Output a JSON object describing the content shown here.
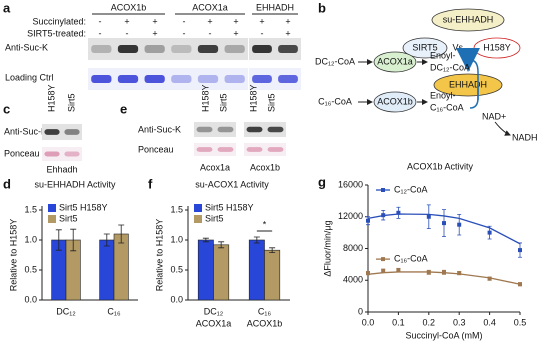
{
  "panel_labels": [
    "a",
    "b",
    "c",
    "d",
    "e",
    "f",
    "g"
  ],
  "blot_a": {
    "groups": [
      "ACOX1b",
      "ACOX1a",
      "EHHADH"
    ],
    "rows": [
      {
        "label": "Succinylated:",
        "marks": [
          "-",
          "+",
          "+",
          "-",
          "+",
          "+",
          "+",
          "+"
        ]
      },
      {
        "label": "SIRT5-treated:",
        "marks": [
          "-",
          "-",
          "+",
          "-",
          "-",
          "+",
          "-",
          "+"
        ]
      }
    ],
    "blots": [
      "Anti-Suc-K",
      "Loading Ctrl"
    ]
  },
  "diagram_b": {
    "top": "su-EHHADH",
    "left": "SIRT5",
    "vs": "Vs.",
    "right": "H158Y",
    "target": "EHHADH",
    "substrates": [
      "DC₁₂-CoA",
      "C₁₆-CoA"
    ],
    "enzymes": [
      "ACOX1a",
      "ACOX1b"
    ],
    "products": [
      [
        "Enoyl-",
        "DC₁₂-CoA"
      ],
      [
        "Enoyl-",
        "C₁₆-CoA"
      ]
    ],
    "cofactor": "NAD+",
    "cofactor_product": "NADH"
  },
  "blot_c": {
    "lanes": [
      "H158Y",
      "Sirt5"
    ],
    "blots": [
      "Anti-Suc-K",
      "Ponceau"
    ],
    "proteins": [
      "Ehhadh"
    ]
  },
  "blot_e": {
    "lanes": [
      "H158Y",
      "Sirt5",
      "H158Y",
      "Sirt5"
    ],
    "blots": [
      "Anti-Suc-K",
      "Ponceau"
    ],
    "proteins": [
      "Acox1a",
      "Acox1b"
    ]
  },
  "chart_data": [
    {
      "type": "bar",
      "title": "su-EHHADH Activity",
      "ylabel": "Relative to H158Y",
      "categories": [
        "DC₁₂",
        "C₁₆"
      ],
      "series": [
        {
          "name": "Sirt5 H158Y",
          "color": "#2847d8",
          "values": [
            1.0,
            1.0
          ],
          "errors": [
            0.17,
            0.1
          ]
        },
        {
          "name": "Sirt5",
          "color": "#b39a64",
          "values": [
            1.0,
            1.1
          ],
          "errors": [
            0.18,
            0.15
          ]
        }
      ],
      "ylim": [
        0,
        1.5
      ],
      "yticks": [
        {
          "value": 0,
          "label": "0.0"
        },
        {
          "value": 0.5,
          "label": "0.5"
        },
        {
          "value": 1,
          "label": "1.0"
        },
        {
          "value": 1.5,
          "label": "1.5"
        }
      ],
      "legend": "upper left"
    },
    {
      "type": "bar",
      "title": "su-ACOX1 Activity",
      "ylabel": "Relative to H158Y",
      "categories": [
        "DC₁₂",
        "C₁₆"
      ],
      "sublabels": [
        "ACOX1a",
        "ACOX1b"
      ],
      "series": [
        {
          "name": "Sirt5 H158Y",
          "color": "#2847d8",
          "values": [
            1.0,
            1.0
          ],
          "errors": [
            0.03,
            0.05
          ]
        },
        {
          "name": "Sirt5",
          "color": "#b39a64",
          "values": [
            0.92,
            0.83
          ],
          "errors": [
            0.05,
            0.04
          ]
        }
      ],
      "ylim": [
        0,
        1.5
      ],
      "yticks": [
        {
          "value": 0,
          "label": "0.0"
        },
        {
          "value": 0.5,
          "label": "0.5"
        },
        {
          "value": 1,
          "label": "1.0"
        },
        {
          "value": 1.5,
          "label": "1.5"
        }
      ],
      "annotation": "*",
      "legend": "upper left"
    },
    {
      "type": "scatter",
      "title": "ACOX1b Activity",
      "ylabel": "ΔFluor/min/μg",
      "xlabel": "Succinyl-CoA (mM)",
      "x": [
        0,
        0.05,
        0.1,
        0.2,
        0.25,
        0.3,
        0.4,
        0.5
      ],
      "series": [
        {
          "name": "C₁₂-CoA",
          "color": "#2a4fb8",
          "values": [
            11500,
            12200,
            12500,
            12000,
            11200,
            11000,
            10000,
            7800
          ],
          "errors": [
            500,
            600,
            700,
            1500,
            1700,
            1300,
            800,
            900
          ],
          "fit": [
            11800,
            12150,
            12350,
            12300,
            12100,
            11800,
            10600,
            8600
          ]
        },
        {
          "name": "C₁₆-CoA",
          "color": "#a07850",
          "values": [
            4900,
            5200,
            5300,
            5000,
            5000,
            4900,
            4200,
            3500
          ],
          "errors": [
            200,
            200,
            200,
            250,
            250,
            200,
            200,
            200
          ],
          "fit": [
            4750,
            4950,
            5050,
            5050,
            4950,
            4800,
            4300,
            3500
          ]
        }
      ],
      "xlim": [
        0,
        0.5
      ],
      "xticks": [
        {
          "value": 0,
          "label": "0.0"
        },
        {
          "value": 0.1,
          "label": "0.1"
        },
        {
          "value": 0.2,
          "label": "0.2"
        },
        {
          "value": 0.3,
          "label": "0.3"
        },
        {
          "value": 0.4,
          "label": "0.4"
        },
        {
          "value": 0.5,
          "label": "0.5"
        }
      ],
      "ylim": [
        0,
        16000
      ],
      "yticks": [
        0,
        4000,
        8000,
        12000,
        16000
      ]
    }
  ]
}
